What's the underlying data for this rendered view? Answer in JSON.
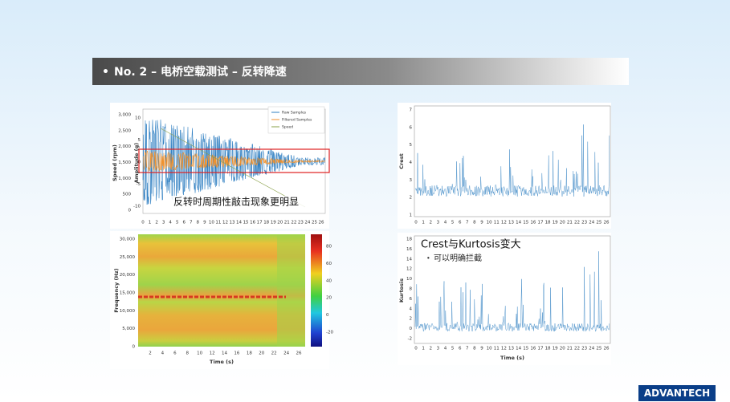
{
  "header": {
    "title": "No. 2 – 电桥空载测试 – 反转降速"
  },
  "panels": {
    "waveform": {
      "y_label": "Speed (rpm)",
      "y2_label": "Amplitude (g)",
      "yticks": [
        "3,000",
        "2,500",
        "2,000",
        "1,500",
        "1,000",
        "500",
        "0"
      ],
      "y2ticks": [
        "10",
        "5",
        "0",
        "-5",
        "-10"
      ],
      "xticks": [
        "0",
        "1",
        "2",
        "3",
        "4",
        "5",
        "6",
        "7",
        "8",
        "9",
        "10",
        "11",
        "12",
        "13",
        "14",
        "15",
        "16",
        "17",
        "18",
        "19",
        "20",
        "21",
        "22",
        "23",
        "24",
        "25",
        "26"
      ],
      "legend": [
        "Raw Samples",
        "Filtered Samples",
        "Speed"
      ],
      "annotation": "反转时周期性敲击现象更明显"
    },
    "spectrogram": {
      "y_label": "Frequency (Hz)",
      "x_label": "Time (s)",
      "yticks": [
        "30,000",
        "25,000",
        "20,000",
        "15,000",
        "10,000",
        "5,000",
        "0"
      ],
      "xticks": [
        "2",
        "4",
        "6",
        "8",
        "10",
        "12",
        "14",
        "16",
        "18",
        "20",
        "22",
        "24",
        "26"
      ],
      "colorbar_ticks": [
        "80",
        "60",
        "40",
        "20",
        "0",
        "-20"
      ]
    },
    "crest": {
      "y_label": "Crest",
      "yticks": [
        "7",
        "6",
        "5",
        "4",
        "3",
        "2",
        "1"
      ],
      "xticks": [
        "0",
        "1",
        "2",
        "3",
        "4",
        "5",
        "6",
        "7",
        "8",
        "9",
        "10",
        "11",
        "12",
        "13",
        "14",
        "15",
        "16",
        "17",
        "18",
        "19",
        "20",
        "21",
        "22",
        "23",
        "24",
        "25",
        "26"
      ]
    },
    "kurtosis": {
      "y_label": "Kurtosis",
      "x_label": "Time (s)",
      "yticks": [
        "18",
        "16",
        "14",
        "12",
        "10",
        "8",
        "6",
        "4",
        "2",
        "0",
        "-2"
      ],
      "xticks": [
        "0",
        "1",
        "2",
        "3",
        "4",
        "5",
        "6",
        "7",
        "8",
        "9",
        "10",
        "11",
        "12",
        "13",
        "14",
        "15",
        "16",
        "17",
        "18",
        "19",
        "20",
        "21",
        "22",
        "23",
        "24",
        "25",
        "26"
      ],
      "annotation": "Crest与Kurtosis变大",
      "bullet": "可以明确拦截"
    }
  },
  "logo": "ADVANTECH"
}
